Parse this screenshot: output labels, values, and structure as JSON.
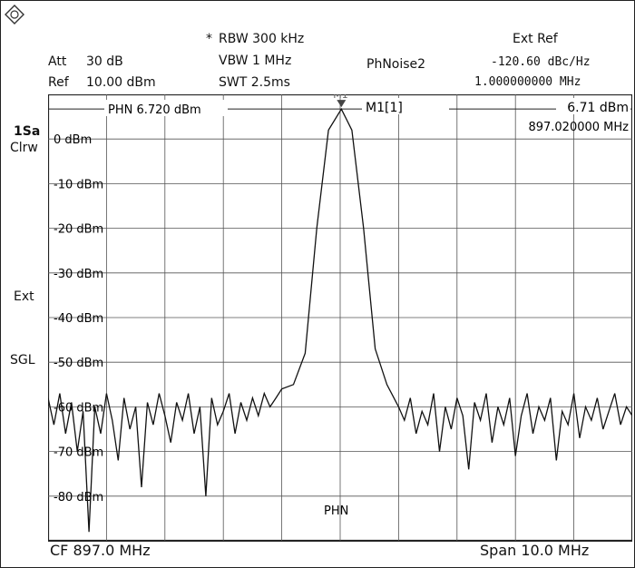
{
  "header": {
    "rbw_star": "*",
    "rbw": "RBW 300 kHz",
    "vbw": "VBW 1 MHz",
    "swt": "SWT 2.5ms",
    "att_label": "Att",
    "att_value": "30 dB",
    "ref_label": "Ref",
    "ref_value": "10.00 dBm",
    "measurement": "PhNoise2",
    "ext_ref": "Ext Ref",
    "phase_noise": "-120.60 dBc/Hz",
    "offset": "1.000000000 MHz"
  },
  "left_panel": {
    "trace_mode": "1Sa",
    "trace_detector": "Clrw",
    "ext": "Ext",
    "sgl": "SGL"
  },
  "marker": {
    "tag": "M1",
    "label": "M1[1]",
    "level": "6.71 dBm",
    "frequency": "897.020000 MHz",
    "phn_line": "PHN  6.720 dBm",
    "phn_bottom": "PHN"
  },
  "footer": {
    "cf": "CF 897.0 MHz",
    "span": "Span 10.0 MHz"
  },
  "colors": {
    "trace": "#111111",
    "grid": "#555555",
    "background": "#ffffff"
  },
  "chart_data": {
    "type": "line",
    "y_unit": "dBm",
    "x_unit": "MHz",
    "xlim": [
      892.0,
      902.0
    ],
    "ylim": [
      -90,
      10
    ],
    "y_tick_labels": [
      "0 dBm",
      "-10 dBm",
      "-20 dBm",
      "-30 dBm",
      "-40 dBm",
      "-50 dBm",
      "-60 dBm",
      "-70 dBm",
      "-80 dBm"
    ],
    "y_tick_values": [
      0,
      -10,
      -20,
      -30,
      -40,
      -50,
      -60,
      -70,
      -80
    ],
    "grid": true,
    "phn_level": 6.72,
    "peak": {
      "x": 897.02,
      "y": 6.71
    },
    "series": [
      {
        "values_x": [
          892.0,
          892.1,
          892.2,
          892.3,
          892.4,
          892.5,
          892.6,
          892.7,
          892.8,
          892.9,
          893.0,
          893.1,
          893.2,
          893.3,
          893.4,
          893.5,
          893.6,
          893.7,
          893.8,
          893.9,
          894.0,
          894.1,
          894.2,
          894.3,
          894.4,
          894.5,
          894.6,
          894.7,
          894.8,
          894.9,
          895.0,
          895.1,
          895.2,
          895.3,
          895.4,
          895.5,
          895.6,
          895.7,
          895.8,
          895.9,
          896.0,
          896.2,
          896.4,
          896.6,
          896.8,
          897.02,
          897.2,
          897.4,
          897.6,
          897.8,
          898.0,
          898.1,
          898.2,
          898.3,
          898.4,
          898.5,
          898.6,
          898.7,
          898.8,
          898.9,
          899.0,
          899.1,
          899.2,
          899.3,
          899.4,
          899.5,
          899.6,
          899.7,
          899.8,
          899.9,
          900.0,
          900.1,
          900.2,
          900.3,
          900.4,
          900.5,
          900.6,
          900.7,
          900.8,
          900.9,
          901.0,
          901.1,
          901.2,
          901.3,
          901.4,
          901.5,
          901.6,
          901.7,
          901.8,
          901.9,
          902.0
        ],
        "values_y": [
          -58,
          -64,
          -57,
          -66,
          -59,
          -70,
          -61,
          -88,
          -60,
          -66,
          -57,
          -63,
          -72,
          -58,
          -65,
          -60,
          -78,
          -59,
          -64,
          -57,
          -62,
          -68,
          -59,
          -63,
          -57,
          -66,
          -60,
          -80,
          -58,
          -64,
          -61,
          -57,
          -66,
          -59,
          -63,
          -58,
          -62,
          -57,
          -60,
          -58,
          -56,
          -55,
          -48,
          -20,
          2,
          6.71,
          2,
          -20,
          -47,
          -55,
          -60,
          -63,
          -58,
          -66,
          -61,
          -64,
          -57,
          -70,
          -60,
          -65,
          -58,
          -62,
          -74,
          -59,
          -63,
          -57,
          -68,
          -60,
          -64,
          -58,
          -71,
          -62,
          -57,
          -66,
          -60,
          -63,
          -58,
          -72,
          -61,
          -64,
          -57,
          -67,
          -60,
          -63,
          -58,
          -65,
          -61,
          -57,
          -64,
          -60,
          -62
        ]
      }
    ]
  }
}
